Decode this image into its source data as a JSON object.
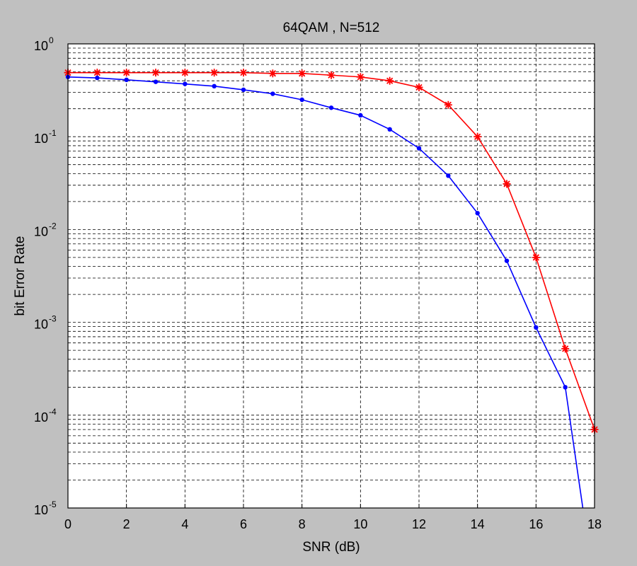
{
  "chart_data": {
    "type": "line",
    "title": "64QAM , N=512",
    "xlabel": "SNR (dB)",
    "ylabel": "bit Error Rate",
    "xlim": [
      0,
      18
    ],
    "ylim": [
      1e-05,
      1
    ],
    "yscale": "log",
    "grid": true,
    "x_ticks": [
      0,
      2,
      4,
      6,
      8,
      10,
      12,
      14,
      16,
      18
    ],
    "y_ticks": [
      {
        "base": "10",
        "exp": "0",
        "value": 1
      },
      {
        "base": "10",
        "exp": "-1",
        "value": 0.1
      },
      {
        "base": "10",
        "exp": "-2",
        "value": 0.01
      },
      {
        "base": "10",
        "exp": "-3",
        "value": 0.001
      },
      {
        "base": "10",
        "exp": "-4",
        "value": 0.0001
      },
      {
        "base": "10",
        "exp": "-5",
        "value": 1e-05
      }
    ],
    "series": [
      {
        "color": "#ff0000",
        "marker": "star",
        "x": [
          0,
          1,
          2,
          3,
          4,
          5,
          6,
          7,
          8,
          9,
          10,
          11,
          12,
          13,
          14,
          15,
          16,
          17,
          18
        ],
        "y": [
          0.49,
          0.49,
          0.49,
          0.49,
          0.49,
          0.49,
          0.49,
          0.48,
          0.48,
          0.46,
          0.44,
          0.4,
          0.34,
          0.22,
          0.1,
          0.031,
          0.005,
          0.00052,
          7e-05
        ]
      },
      {
        "color": "#0000ff",
        "marker": "dot",
        "x": [
          0,
          1,
          2,
          3,
          4,
          5,
          6,
          7,
          8,
          9,
          10,
          11,
          12,
          13,
          14,
          15,
          16,
          17,
          17.6
        ],
        "y": [
          0.44,
          0.43,
          0.41,
          0.39,
          0.37,
          0.35,
          0.32,
          0.29,
          0.25,
          0.205,
          0.17,
          0.12,
          0.075,
          0.038,
          0.015,
          0.0046,
          0.00088,
          0.0002,
          1e-05
        ],
        "marker_count": 18
      }
    ]
  }
}
